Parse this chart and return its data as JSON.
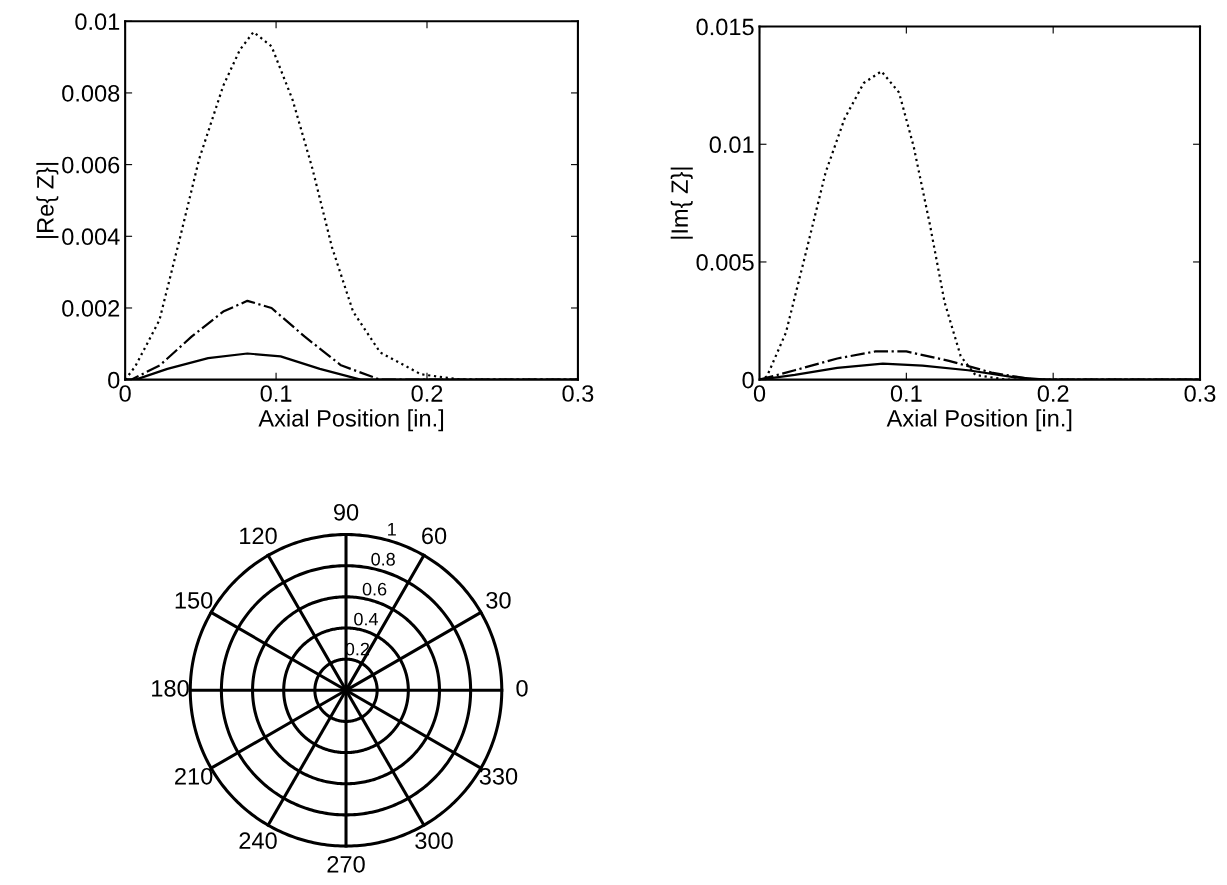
{
  "chart_data": [
    {
      "type": "line",
      "xlabel": "Axial Position [in.]",
      "ylabel": "|Re{ Z}|",
      "xlim": [
        0,
        0.3
      ],
      "ylim": [
        0,
        0.01
      ],
      "xticks": [
        0,
        0.1,
        0.2,
        0.3
      ],
      "yticks": [
        0,
        0.002,
        0.004,
        0.006,
        0.008,
        0.01
      ],
      "grid": false,
      "series": [
        {
          "color": "#000000",
          "line_style": "dotted",
          "x": [
            0.0,
            0.0067,
            0.0227,
            0.036,
            0.049,
            0.065,
            0.076,
            0.085,
            0.097,
            0.111,
            0.124,
            0.137,
            0.151,
            0.169,
            0.196,
            0.223,
            0.3
          ],
          "values": [
            0.0,
            0.00037,
            0.00166,
            0.0039,
            0.00615,
            0.0082,
            0.0092,
            0.0097,
            0.0093,
            0.0078,
            0.0059,
            0.0037,
            0.0019,
            0.00076,
            0.00015,
            0.0,
            0.0
          ]
        },
        {
          "color": "#000000",
          "line_style": "dashdot",
          "x": [
            0.0,
            0.004,
            0.023,
            0.044,
            0.065,
            0.081,
            0.097,
            0.119,
            0.143,
            0.169,
            0.183,
            0.3
          ],
          "values": [
            0.0,
            0.0,
            0.0004,
            0.0012,
            0.0019,
            0.0022,
            0.002,
            0.0012,
            0.0004,
            0.0,
            0.0,
            0.0
          ]
        },
        {
          "color": "#000000",
          "line_style": "solid",
          "x": [
            0.0,
            0.007,
            0.028,
            0.055,
            0.081,
            0.103,
            0.129,
            0.156,
            0.17,
            0.3
          ],
          "values": [
            0.0,
            0.0,
            0.0003,
            0.0006,
            0.00073,
            0.00065,
            0.0003,
            0.0,
            0.0,
            0.0
          ]
        }
      ]
    },
    {
      "type": "line",
      "xlabel": "Axial Position [in.]",
      "ylabel": "|Im{ Z}|",
      "xlim": [
        0,
        0.3
      ],
      "ylim": [
        0,
        0.015
      ],
      "xticks": [
        0,
        0.1,
        0.2,
        0.3
      ],
      "yticks": [
        0,
        0.005,
        0.01,
        0.015
      ],
      "grid": false,
      "series": [
        {
          "color": "#000000",
          "line_style": "dotted",
          "x": [
            0.0,
            0.005,
            0.018,
            0.032,
            0.045,
            0.058,
            0.071,
            0.083,
            0.095,
            0.105,
            0.116,
            0.126,
            0.137,
            0.147,
            0.168,
            0.2,
            0.3
          ],
          "values": [
            0.0,
            0.00013,
            0.002,
            0.0055,
            0.0088,
            0.0111,
            0.0126,
            0.0131,
            0.0122,
            0.0099,
            0.0066,
            0.0033,
            0.001,
            0.0002,
            0.0,
            0.0,
            0.0
          ]
        },
        {
          "color": "#000000",
          "line_style": "dashdot",
          "x": [
            0.0,
            0.024,
            0.053,
            0.079,
            0.1,
            0.129,
            0.158,
            0.187,
            0.221,
            0.3
          ],
          "values": [
            0.0,
            0.0004,
            0.0009,
            0.0012,
            0.0012,
            0.0008,
            0.0003,
            0.0,
            0.0,
            0.0
          ]
        },
        {
          "color": "#000000",
          "line_style": "solid",
          "x": [
            0.0,
            0.024,
            0.053,
            0.084,
            0.111,
            0.142,
            0.174,
            0.195,
            0.3
          ],
          "values": [
            0.0,
            0.0002,
            0.0005,
            0.00068,
            0.0006,
            0.0004,
            0.0001,
            0.0,
            0.0
          ]
        }
      ]
    },
    {
      "type": "other",
      "annotations": [
        "0",
        "30",
        "60",
        "90",
        "120",
        "150",
        "180",
        "210",
        "240",
        "270",
        "300",
        "330",
        "0.2",
        "0.4",
        "0.6",
        "0.8",
        "1"
      ]
    }
  ]
}
